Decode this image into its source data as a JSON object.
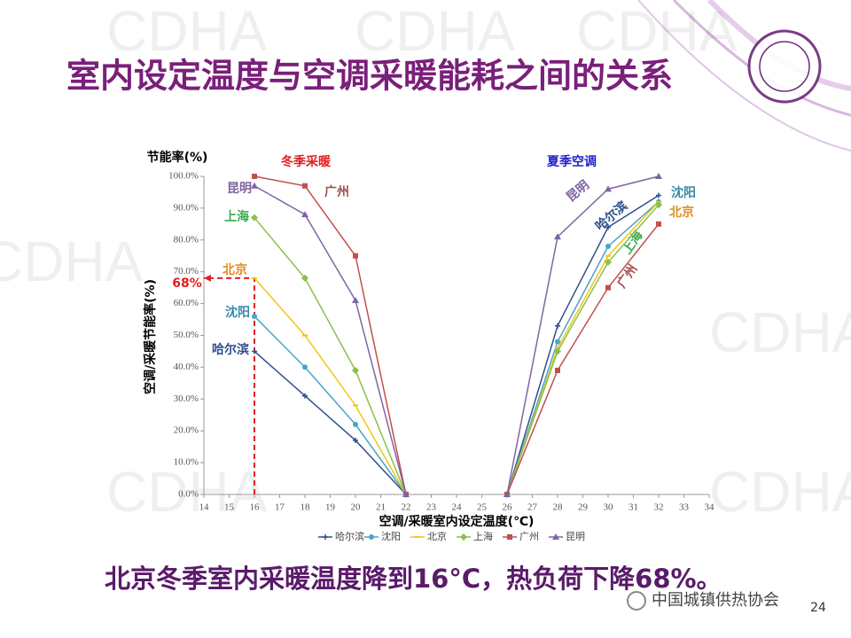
{
  "slide": {
    "title": "室内设定温度与空调采暖能耗之间的关系",
    "conclusion": "北京冬季室内采暖温度降到16°C，热负荷下降68%。",
    "watermark": "CDHA",
    "source": "中国城镇供热协会",
    "page": "24"
  },
  "chart_data": {
    "type": "line",
    "y_label_top": "节能率(%)",
    "ylabel": "空调/采暖节能率(%)",
    "xlabel": "空调/采暖室内设定温度(℃)",
    "section_labels": [
      "冬季采暖",
      "夏季空调"
    ],
    "annotations": [
      "昆明",
      "广州",
      "上海",
      "北京",
      "沈阳",
      "哈尔滨",
      "昆明",
      "哈尔滨",
      "沈阳",
      "北京",
      "上海",
      "广州",
      "68%"
    ],
    "x": [
      16,
      18,
      20,
      22,
      24,
      26,
      28,
      30,
      32
    ],
    "xlim": [
      14,
      34
    ],
    "xticks": [
      14,
      15,
      16,
      17,
      18,
      19,
      20,
      21,
      22,
      23,
      24,
      25,
      26,
      27,
      28,
      29,
      30,
      31,
      32,
      33,
      34
    ],
    "ylim": [
      0,
      100
    ],
    "yticks": [
      {
        "value": 0,
        "label": "0.0%"
      },
      {
        "value": 10,
        "label": "10.0%"
      },
      {
        "value": 20,
        "label": "20.0%"
      },
      {
        "value": 30,
        "label": "30.0%"
      },
      {
        "value": 40,
        "label": "40.0%"
      },
      {
        "value": 50,
        "label": "50.0%"
      },
      {
        "value": 60,
        "label": "60.0%"
      },
      {
        "value": 70,
        "label": "70.0%"
      },
      {
        "value": 80,
        "label": "80.0%"
      },
      {
        "value": 90,
        "label": "90.0%"
      },
      {
        "value": 100,
        "label": "100.0%"
      }
    ],
    "grid": false,
    "legend": "bottom",
    "series": [
      {
        "name": "哈尔滨",
        "color": "#2f4f8f",
        "marker": "plus",
        "values": [
          45,
          31,
          17,
          0,
          null,
          0,
          53,
          84,
          94
        ]
      },
      {
        "name": "沈阳",
        "color": "#4aa3c8",
        "marker": "circle",
        "values": [
          56,
          40,
          22,
          0,
          null,
          0,
          48,
          78,
          92
        ]
      },
      {
        "name": "北京",
        "color": "#f2c418",
        "marker": "dash",
        "values": [
          68,
          50,
          28,
          0,
          null,
          0,
          46,
          75,
          92
        ]
      },
      {
        "name": "上海",
        "color": "#8cbf4a",
        "marker": "diamond",
        "values": [
          87,
          68,
          39,
          0,
          null,
          0,
          45,
          73,
          91
        ]
      },
      {
        "name": "广州",
        "color": "#c0504d",
        "marker": "square",
        "values": [
          100,
          97,
          75,
          0,
          null,
          0,
          39,
          65,
          85
        ]
      },
      {
        "name": "昆明",
        "color": "#8064a2",
        "marker": "triangle",
        "values": [
          97,
          88,
          61,
          0,
          null,
          0,
          81,
          96,
          100
        ]
      }
    ]
  }
}
